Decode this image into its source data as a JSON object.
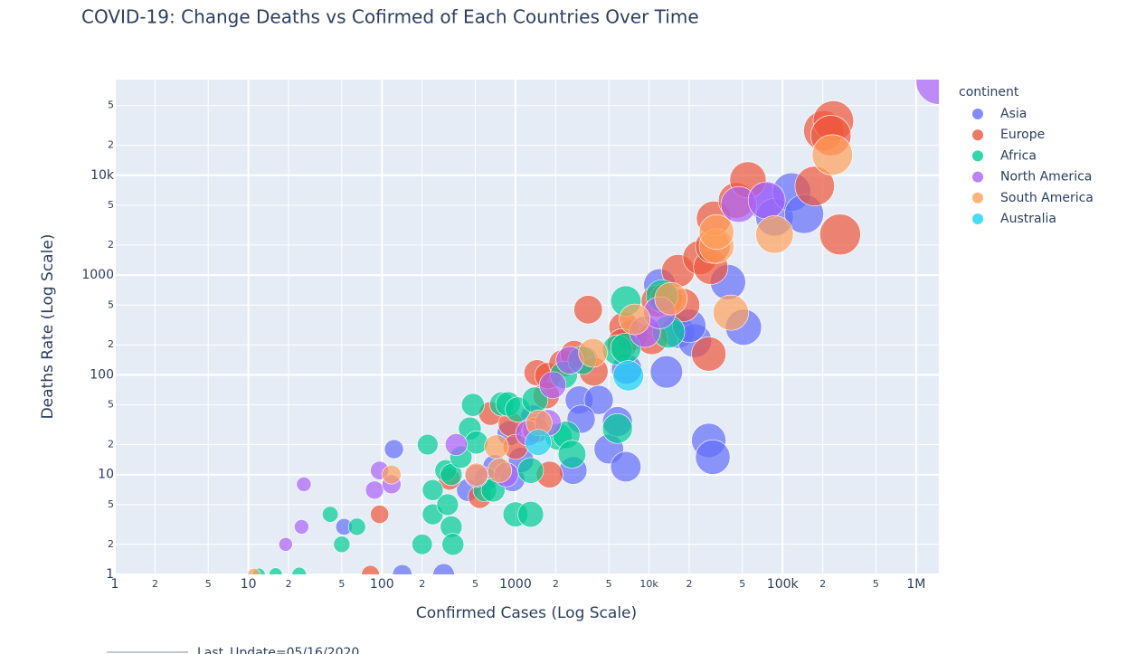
{
  "chart_data": {
    "type": "scatter",
    "title": "COVID-19: Change Deaths vs Cofirmed of Each Countries Over Time",
    "x_label": "Confirmed Cases (Log Scale)",
    "y_label": "Deaths Rate (Log Scale)",
    "legend_title": "continent",
    "footer": "Last_Update=05/16/2020",
    "log_x": true,
    "log_y": true,
    "grid": true,
    "legend_position": "right",
    "xlim": [
      1,
      1480000
    ],
    "ylim": [
      1,
      91000
    ],
    "xticks": [
      1,
      2,
      5,
      10,
      {
        "value": 20,
        "label": "2"
      },
      {
        "value": 50,
        "label": "5"
      },
      100,
      {
        "value": 200,
        "label": "2"
      },
      {
        "value": 500,
        "label": "5"
      },
      1000,
      {
        "value": 2000,
        "label": "2"
      },
      {
        "value": 5000,
        "label": "5"
      },
      {
        "value": 10000,
        "label": "10k"
      },
      {
        "value": 20000,
        "label": "2"
      },
      {
        "value": 50000,
        "label": "5"
      },
      {
        "value": 100000,
        "label": "100k"
      },
      {
        "value": 200000,
        "label": "2"
      },
      {
        "value": 500000,
        "label": "5"
      },
      {
        "value": 1000000,
        "label": "1M"
      }
    ],
    "yticks": [
      1,
      2,
      5,
      10,
      {
        "value": 20,
        "label": "2"
      },
      {
        "value": 50,
        "label": "5"
      },
      100,
      {
        "value": 200,
        "label": "2"
      },
      {
        "value": 500,
        "label": "5"
      },
      1000,
      {
        "value": 2000,
        "label": "2"
      },
      {
        "value": 5000,
        "label": "5"
      },
      {
        "value": 10000,
        "label": "10k"
      },
      {
        "value": 20000,
        "label": "2"
      },
      {
        "value": 50000,
        "label": "5"
      }
    ],
    "series": [
      {
        "name": "Asia",
        "color": "#636efa",
        "x": [
          142,
          290,
          52,
          123,
          440,
          700,
          600,
          950,
          1100,
          900,
          1350,
          3000,
          4200,
          3100,
          2700,
          5000,
          5800,
          6700,
          6800,
          13500,
          16500,
          22000,
          20000,
          12000,
          39000,
          51000,
          28000,
          30000,
          74000,
          87000,
          117000,
          145000,
          7500,
          3250
        ],
        "y": [
          1,
          1,
          3,
          18,
          7,
          12,
          9,
          9,
          14,
          26,
          37,
          56,
          56,
          36,
          11,
          18,
          34,
          12,
          114,
          107,
          270,
          220,
          310,
          800,
          850,
          300,
          22,
          15,
          5500,
          3800,
          6800,
          4100,
          250,
          140
        ]
      },
      {
        "name": "Europe",
        "color": "#ef553b",
        "x": [
          82,
          96,
          320,
          540,
          650,
          920,
          1000,
          1800,
          1450,
          1700,
          1750,
          2250,
          2750,
          3500,
          3850,
          6500,
          6300,
          10500,
          11500,
          13500,
          16500,
          18000,
          24000,
          28000,
          29000,
          30000,
          30500,
          45000,
          55000,
          174000,
          203000,
          240000,
          270000,
          230000,
          1420
        ],
        "y": [
          1,
          4,
          9,
          6,
          41,
          32,
          19,
          10,
          105,
          62,
          98,
          130,
          160,
          450,
          108,
          300,
          205,
          230,
          550,
          580,
          1100,
          500,
          1500,
          162,
          1200,
          1950,
          3700,
          5600,
          9000,
          7800,
          28000,
          35000,
          2550,
          25000,
          28
        ]
      },
      {
        "name": "Africa",
        "color": "#00cc96",
        "x": [
          12,
          16,
          24,
          41,
          65,
          50,
          200,
          220,
          240,
          240,
          300,
          310,
          330,
          340,
          330,
          390,
          455,
          480,
          510,
          590,
          680,
          790,
          880,
          1040,
          1000,
          1300,
          1300,
          1400,
          2100,
          2400,
          2650,
          2300,
          3150,
          5800,
          5800,
          6700,
          6700,
          12500,
          14000
        ],
        "y": [
          1,
          1,
          1,
          4,
          3,
          2,
          2,
          20,
          7,
          4,
          11,
          5,
          3,
          2,
          10,
          15,
          29,
          50,
          21,
          7,
          7,
          51,
          51,
          45,
          4,
          4,
          11,
          56,
          24,
          25,
          16,
          100,
          140,
          29,
          178,
          550,
          185,
          620,
          270
        ]
      },
      {
        "name": "North America",
        "color": "#ab63fa",
        "x": [
          19,
          25,
          26,
          88,
          96,
          118,
          360,
          510,
          850,
          1250,
          1750,
          1900,
          2550,
          9300,
          12000,
          47000,
          76000,
          1480000
        ],
        "y": [
          2,
          3,
          8,
          7,
          11,
          8,
          20,
          9.7,
          10,
          26,
          33,
          79,
          140,
          270,
          420,
          5100,
          5600,
          87000
        ]
      },
      {
        "name": "South America",
        "color": "#ffa15a",
        "x": [
          11,
          118,
          510,
          720,
          760,
          1500,
          3800,
          7800,
          14600,
          32000,
          32000,
          41000,
          87000,
          236000
        ],
        "y": [
          1,
          10,
          10,
          19,
          11,
          33,
          166,
          360,
          580,
          1950,
          2700,
          420,
          2550,
          16000
        ]
      },
      {
        "name": "Australia",
        "color": "#19d3f3",
        "x": [
          1480,
          7000
        ],
        "y": [
          21,
          98
        ]
      }
    ]
  }
}
